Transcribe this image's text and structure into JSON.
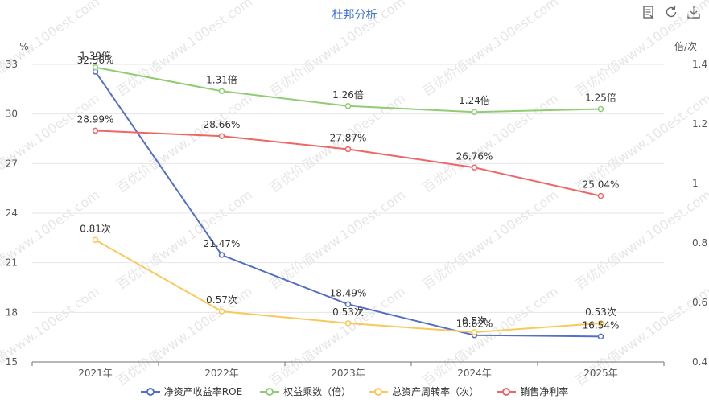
{
  "chart_data": {
    "type": "line",
    "title": "杜邦分析",
    "categories": [
      "2021年",
      "2022年",
      "2023年",
      "2024年",
      "2025年"
    ],
    "y_left": {
      "unit": "%",
      "ylim": [
        15,
        33
      ],
      "ticks": [
        15,
        18,
        21,
        24,
        27,
        30,
        33
      ]
    },
    "y_right": {
      "unit": "倍/次",
      "ylim": [
        0.4,
        1.4
      ],
      "ticks": [
        0.4,
        0.6,
        0.8,
        1,
        1.2,
        1.4
      ]
    },
    "series": [
      {
        "name": "净资产收益率ROE",
        "axis": "left",
        "color": "#5470c6",
        "values": [
          32.56,
          21.47,
          18.49,
          16.62,
          16.54
        ],
        "labels": [
          "32.56%",
          "21.47%",
          "18.49%",
          "16.62%",
          "16.54%"
        ]
      },
      {
        "name": "权益乘数（倍）",
        "axis": "right",
        "color": "#91cc75",
        "values": [
          1.39,
          1.31,
          1.26,
          1.24,
          1.25
        ],
        "labels": [
          "1.39倍",
          "1.31倍",
          "1.26倍",
          "1.24倍",
          "1.25倍"
        ]
      },
      {
        "name": "总资产周转率（次）",
        "axis": "right",
        "color": "#fac858",
        "values": [
          0.81,
          0.57,
          0.53,
          0.5,
          0.53
        ],
        "labels": [
          "0.81次",
          "0.57次",
          "0.53次",
          "0.5次",
          "0.53次"
        ]
      },
      {
        "name": "销售净利率",
        "axis": "left",
        "color": "#ee6666",
        "values": [
          28.99,
          28.66,
          27.87,
          26.76,
          25.04
        ],
        "labels": [
          "28.99%",
          "28.66%",
          "27.87%",
          "26.76%",
          "25.04%"
        ]
      }
    ],
    "grid": true,
    "legend_position": "bottom"
  },
  "toolbar": {
    "icons": [
      "data-view-icon",
      "refresh-icon",
      "download-icon"
    ]
  },
  "watermark": "百优价值www.100est.com"
}
